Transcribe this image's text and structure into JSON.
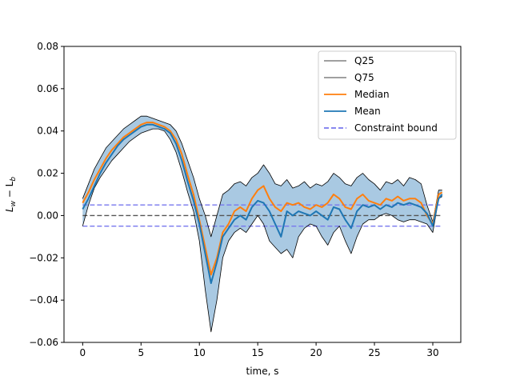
{
  "chart_data": {
    "type": "line",
    "title": "",
    "xlabel": "time, s",
    "ylabel": "L_w − L_b",
    "ylabel_main": "L",
    "ylabel_sub1": "w",
    "ylabel_op": " − L",
    "ylabel_sub2": "b",
    "xlim": [
      -1.6,
      32.4
    ],
    "ylim": [
      -0.06,
      0.08
    ],
    "xticks": [
      0,
      5,
      10,
      15,
      20,
      25,
      30
    ],
    "xtick_labels": [
      "0",
      "5",
      "10",
      "15",
      "20",
      "25",
      "30"
    ],
    "yticks": [
      -0.06,
      -0.04,
      -0.02,
      0.0,
      0.02,
      0.04,
      0.06,
      0.08
    ],
    "ytick_labels": [
      "−0.06",
      "−0.04",
      "−0.02",
      "0.00",
      "0.02",
      "0.04",
      "0.06",
      "0.08"
    ],
    "grid": false,
    "legend_position": "top-right",
    "zero_line": {
      "y": 0.0,
      "color": "#555555"
    },
    "constraint_bound": {
      "values": [
        0.005,
        -0.005
      ],
      "color": "#7777ee"
    },
    "band_color": "#a9c9e2",
    "x": [
      0,
      0.5,
      1,
      1.5,
      2,
      2.5,
      3,
      3.5,
      4,
      4.5,
      5,
      5.5,
      6,
      6.5,
      7,
      7.5,
      8,
      8.5,
      9,
      9.5,
      10,
      10.5,
      11,
      11.5,
      12,
      12.5,
      13,
      13.5,
      14,
      14.5,
      15,
      15.5,
      16,
      16.5,
      17,
      17.5,
      18,
      18.5,
      19,
      19.5,
      20,
      20.5,
      21,
      21.5,
      22,
      22.5,
      23,
      23.5,
      24,
      24.5,
      25,
      25.5,
      26,
      26.5,
      27,
      27.5,
      28,
      28.5,
      29,
      29.5,
      30,
      30.5,
      30.8
    ],
    "series": [
      {
        "name": "Q25",
        "color": "#000000",
        "values": [
          -0.005,
          0.005,
          0.013,
          0.018,
          0.022,
          0.026,
          0.029,
          0.032,
          0.035,
          0.037,
          0.039,
          0.04,
          0.041,
          0.041,
          0.04,
          0.036,
          0.03,
          0.021,
          0.011,
          0.002,
          -0.012,
          -0.035,
          -0.055,
          -0.04,
          -0.02,
          -0.012,
          -0.008,
          -0.006,
          -0.008,
          -0.004,
          0.0,
          -0.004,
          -0.012,
          -0.015,
          -0.018,
          -0.016,
          -0.02,
          -0.01,
          -0.006,
          -0.004,
          -0.005,
          -0.01,
          -0.014,
          -0.008,
          -0.005,
          -0.012,
          -0.018,
          -0.01,
          -0.004,
          -0.002,
          -0.002,
          0.0,
          0.001,
          0.0,
          -0.002,
          -0.003,
          -0.002,
          -0.002,
          -0.003,
          -0.004,
          -0.008,
          0.008,
          0.009
        ]
      },
      {
        "name": "Q75",
        "color": "#000000",
        "values": [
          0.008,
          0.015,
          0.022,
          0.027,
          0.032,
          0.035,
          0.038,
          0.041,
          0.043,
          0.045,
          0.047,
          0.047,
          0.046,
          0.045,
          0.044,
          0.043,
          0.04,
          0.034,
          0.026,
          0.018,
          0.008,
          0.0,
          -0.01,
          0.0,
          0.01,
          0.012,
          0.015,
          0.016,
          0.014,
          0.018,
          0.02,
          0.024,
          0.02,
          0.015,
          0.014,
          0.017,
          0.013,
          0.014,
          0.016,
          0.013,
          0.015,
          0.014,
          0.016,
          0.02,
          0.018,
          0.015,
          0.014,
          0.018,
          0.02,
          0.017,
          0.015,
          0.012,
          0.016,
          0.015,
          0.017,
          0.014,
          0.018,
          0.017,
          0.015,
          0.005,
          -0.003,
          0.012,
          0.012
        ]
      },
      {
        "name": "Median",
        "color": "#ff7f0e",
        "values": [
          0.006,
          0.011,
          0.017,
          0.022,
          0.027,
          0.031,
          0.034,
          0.037,
          0.039,
          0.041,
          0.043,
          0.044,
          0.044,
          0.043,
          0.042,
          0.04,
          0.036,
          0.029,
          0.019,
          0.01,
          -0.002,
          -0.015,
          -0.028,
          -0.02,
          -0.008,
          -0.004,
          0.002,
          0.004,
          0.002,
          0.008,
          0.012,
          0.014,
          0.008,
          0.004,
          0.002,
          0.006,
          0.005,
          0.006,
          0.004,
          0.003,
          0.005,
          0.004,
          0.006,
          0.01,
          0.008,
          0.004,
          0.003,
          0.008,
          0.01,
          0.007,
          0.006,
          0.005,
          0.008,
          0.007,
          0.009,
          0.007,
          0.008,
          0.008,
          0.006,
          0.0,
          -0.004,
          0.01,
          0.011
        ]
      },
      {
        "name": "Mean",
        "color": "#1f77b4",
        "values": [
          0.003,
          0.008,
          0.014,
          0.02,
          0.025,
          0.029,
          0.033,
          0.036,
          0.038,
          0.04,
          0.042,
          0.043,
          0.043,
          0.042,
          0.041,
          0.039,
          0.034,
          0.026,
          0.016,
          0.007,
          -0.004,
          -0.018,
          -0.032,
          -0.022,
          -0.01,
          -0.006,
          -0.002,
          0.0,
          -0.002,
          0.004,
          0.007,
          0.006,
          0.002,
          -0.004,
          -0.01,
          0.002,
          0.0,
          0.002,
          0.001,
          0.0,
          0.002,
          0.0,
          -0.002,
          0.004,
          0.003,
          -0.002,
          -0.006,
          0.002,
          0.005,
          0.004,
          0.005,
          0.003,
          0.005,
          0.004,
          0.006,
          0.005,
          0.006,
          0.005,
          0.004,
          0.001,
          -0.005,
          0.008,
          0.01
        ]
      }
    ],
    "legend": [
      {
        "label": "Q25",
        "color": "#000000",
        "style": "thin"
      },
      {
        "label": "Q75",
        "color": "#000000",
        "style": "thin"
      },
      {
        "label": "Median",
        "color": "#ff7f0e",
        "style": "solid"
      },
      {
        "label": "Mean",
        "color": "#1f77b4",
        "style": "solid"
      },
      {
        "label": "Constraint bound",
        "color": "#7777ee",
        "style": "dashed"
      }
    ]
  }
}
